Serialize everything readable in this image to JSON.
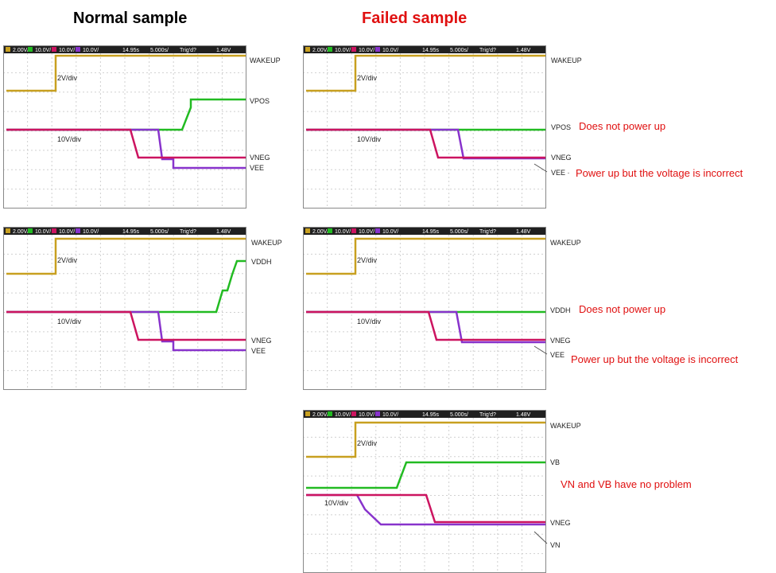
{
  "headings": {
    "normal": "Normal sample",
    "failed": "Failed sample"
  },
  "scope_header": [
    "2.00V/",
    "10.0V/",
    "10.0V/",
    "10.0V/",
    "14.95s",
    "5.000s/",
    "Trig'd?",
    "1.48V"
  ],
  "scale_labels": {
    "low": "2V/div",
    "high": "10V/div"
  },
  "colors": {
    "wakeup": "#c8a020",
    "green": "#22bb22",
    "magenta": "#cc1460",
    "purple": "#8833cc",
    "note": "#e01010"
  },
  "panels": {
    "normal_top": {
      "signals": [
        "WAKEUP",
        "VPOS",
        "VNEG",
        "VEE"
      ]
    },
    "normal_bottom": {
      "signals": [
        "WAKEUP",
        "VDDH",
        "VNEG",
        "VEE"
      ]
    },
    "failed_top": {
      "signals": [
        "WAKEUP",
        "VPOS",
        "VNEG",
        "VEE ·"
      ]
    },
    "failed_mid": {
      "signals": [
        "WAKEUP",
        "VDDH",
        "VNEG",
        "VEE"
      ]
    },
    "failed_bottom": {
      "signals": [
        "WAKEUP",
        "VB",
        "VNEG",
        "VN"
      ]
    }
  },
  "notes": {
    "vpos_fail": "Does not power up",
    "vee_fail_1": "Power up but the voltage is incorrect",
    "vddh_fail": "Does not power up",
    "vee_fail_2": "Power up but the voltage is incorrect",
    "vn_vb_ok": "VN and VB have no problem"
  }
}
